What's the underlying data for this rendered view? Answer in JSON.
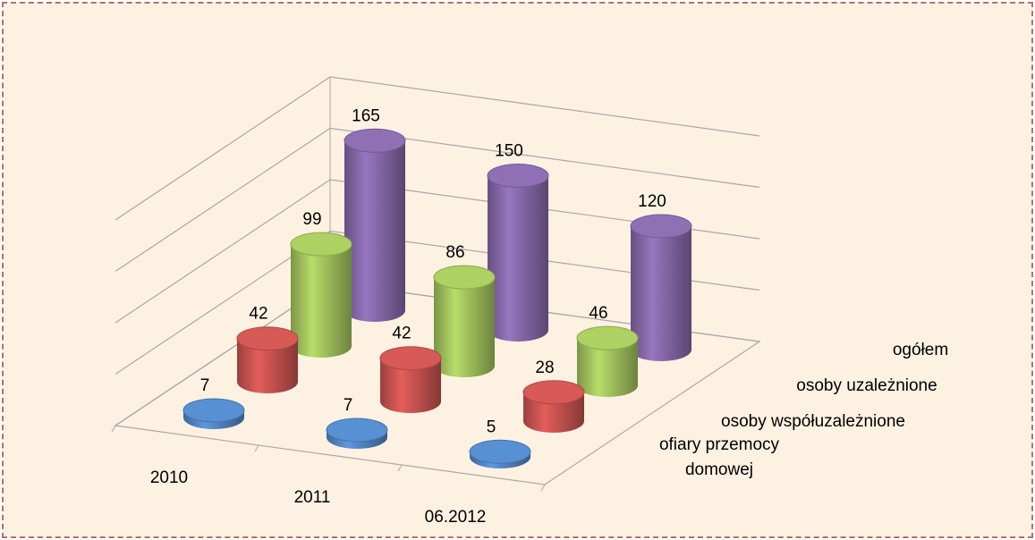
{
  "chart_data": {
    "type": "bar3d",
    "categories": [
      "2010",
      "2011",
      "06.2012"
    ],
    "series": [
      {
        "name": "ofiary przemocy domowej",
        "color": "#4f81bd",
        "values": [
          7,
          7,
          5
        ]
      },
      {
        "name": "osoby współuzależnione",
        "color": "#c0504d",
        "values": [
          42,
          42,
          28
        ]
      },
      {
        "name": "osoby uzależnione",
        "color": "#9bbb59",
        "values": [
          99,
          86,
          46
        ]
      },
      {
        "name": "ogółem",
        "color": "#8064a2",
        "values": [
          165,
          150,
          120
        ]
      }
    ],
    "ylim": [
      0,
      200
    ],
    "yticks": [
      0,
      50,
      100,
      150,
      200
    ],
    "grid": true
  }
}
